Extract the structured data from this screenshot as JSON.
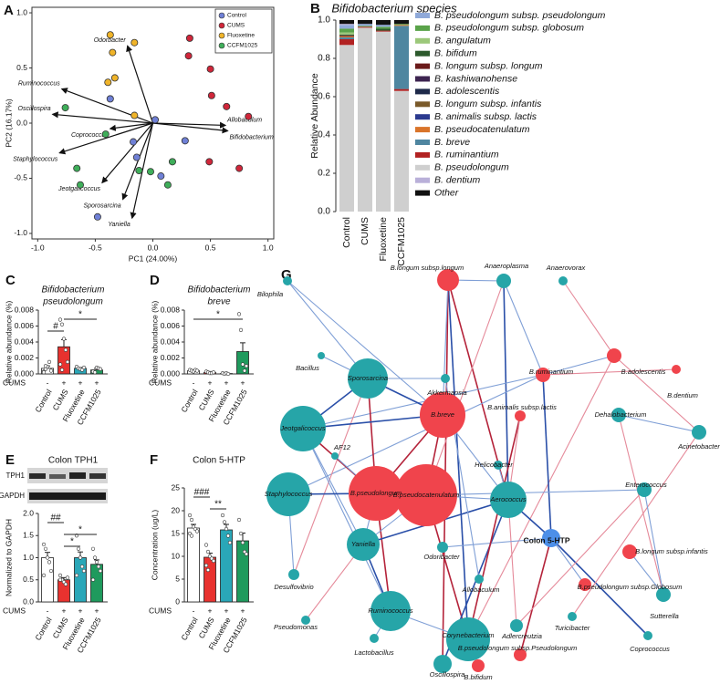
{
  "chart_data": [
    {
      "panel": "A",
      "type": "scatter",
      "xlabel": "PC1 (24.00%)",
      "ylabel": "PC2 (16.17%)",
      "xlim": [
        -1.05,
        1.05
      ],
      "ylim": [
        -1.05,
        1.05
      ],
      "xticks": [
        {
          "value": -1,
          "label": "-1.0"
        },
        -0.5,
        {
          "value": 0,
          "label": "0.0"
        },
        0.5,
        {
          "value": 1,
          "label": "1.0"
        }
      ],
      "yticks": [
        {
          "value": -1,
          "label": "-1.0"
        },
        -0.5,
        {
          "value": 0,
          "label": "0.0"
        },
        0.5,
        {
          "value": 1,
          "label": "1.0"
        }
      ],
      "legend": "upper right",
      "series": [
        {
          "name": "Control",
          "color": "#6f80d6",
          "x": [
            -0.17,
            -0.37,
            0.28,
            0.07,
            -0.48,
            -0.14,
            0.02
          ],
          "y": [
            -0.17,
            0.22,
            -0.16,
            -0.48,
            -0.85,
            -0.31,
            0.03
          ]
        },
        {
          "name": "CUMS",
          "color": "#d0263a",
          "x": [
            0.31,
            0.5,
            0.51,
            0.64,
            0.83,
            0.75,
            0.49,
            0.32
          ],
          "y": [
            0.61,
            0.49,
            0.25,
            0.15,
            0.06,
            -0.41,
            -0.35,
            0.77
          ]
        },
        {
          "name": "Fluoxetine",
          "color": "#f0b429",
          "x": [
            -0.37,
            -0.35,
            -0.33,
            -0.39,
            -0.16,
            -0.16
          ],
          "y": [
            0.8,
            0.64,
            0.41,
            0.37,
            0.07,
            0.73
          ]
        },
        {
          "name": "CCFM1025",
          "color": "#3fae5a",
          "x": [
            -0.76,
            -0.66,
            -0.63,
            -0.12,
            0.13,
            0.17,
            -0.02,
            -0.41
          ],
          "y": [
            0.14,
            -0.41,
            -0.56,
            -0.43,
            -0.56,
            -0.35,
            -0.44,
            -0.1
          ]
        }
      ],
      "loadings": [
        {
          "label": "Odorbacter",
          "x": -0.22,
          "y": 0.7
        },
        {
          "label": "Ruminococcus",
          "x": -0.79,
          "y": 0.31
        },
        {
          "label": "Oscillospira",
          "x": -0.87,
          "y": 0.08
        },
        {
          "label": "Coprococcus",
          "x": -0.37,
          "y": -0.05
        },
        {
          "label": "Staphylococcus",
          "x": -0.81,
          "y": -0.27
        },
        {
          "label": "Jeotgalicoccus",
          "x": -0.44,
          "y": -0.54
        },
        {
          "label": "Sporosarcina",
          "x": -0.26,
          "y": -0.69
        },
        {
          "label": "Yaniella",
          "x": -0.18,
          "y": -0.86
        },
        {
          "label": "Allobaculum",
          "x": 0.63,
          "y": -0.02
        },
        {
          "label": "Bifidobacterium",
          "x": 0.65,
          "y": -0.07
        }
      ]
    },
    {
      "panel": "B",
      "type": "stacked_bar",
      "title": "Bifidobacterium species",
      "ylabel": "Relative Abundance",
      "categories": [
        "Control",
        "CUMS",
        "Fluoxetine",
        "CCFM1025"
      ],
      "ylim": [
        0,
        1
      ],
      "yticks": [
        {
          "value": 0,
          "label": "0.0"
        },
        0.2,
        0.4,
        0.6,
        0.8,
        {
          "value": 1,
          "label": "1.0"
        }
      ],
      "series": [
        {
          "name": "B. pseudolongum subsp. pseudolongum",
          "color": "#8fa9d9",
          "values": [
            0.02,
            0.01,
            0.01,
            0
          ]
        },
        {
          "name": "B. pseudolongum subsp. globosum",
          "color": "#5aa34a",
          "values": [
            0.02,
            0.005,
            0.01,
            0.005
          ]
        },
        {
          "name": "B. angulatum",
          "color": "#9cc87a",
          "values": [
            0.01,
            0,
            0,
            0
          ]
        },
        {
          "name": "B. bifidum",
          "color": "#2d5a2d",
          "values": [
            0.005,
            0,
            0.01,
            0
          ]
        },
        {
          "name": "B. longum subsp. longum",
          "color": "#6b1a1a",
          "values": [
            0.005,
            0,
            0,
            0
          ]
        },
        {
          "name": "B. kashiwanohense",
          "color": "#3d2450",
          "values": [
            0,
            0,
            0,
            0
          ]
        },
        {
          "name": "B. adolescentis",
          "color": "#1e2a4a",
          "values": [
            0,
            0,
            0,
            0
          ]
        },
        {
          "name": "B. longum subsp. infantis",
          "color": "#7a5a2a",
          "values": [
            0,
            0,
            0,
            0
          ]
        },
        {
          "name": "B. animalis subsp. lactis",
          "color": "#2b3a8f",
          "values": [
            0,
            0,
            0,
            0
          ]
        },
        {
          "name": "B. pseudocatenulatum",
          "color": "#d9742a",
          "values": [
            0.005,
            0,
            0,
            0.005
          ]
        },
        {
          "name": "B. breve",
          "color": "#4f86a0",
          "values": [
            0.01,
            0,
            0,
            0.33
          ]
        },
        {
          "name": "B. ruminantium",
          "color": "#b22222",
          "values": [
            0.03,
            0.005,
            0.005,
            0.01
          ]
        },
        {
          "name": "B. pseudolongum",
          "color": "#cfcfcf",
          "values": [
            0.87,
            0.96,
            0.94,
            0.63
          ]
        },
        {
          "name": "B. dentium",
          "color": "#b9b0d9",
          "values": [
            0.005,
            0,
            0,
            0
          ]
        },
        {
          "name": "Other",
          "color": "#111111",
          "values": [
            0.02,
            0.02,
            0.025,
            0.02
          ]
        }
      ]
    },
    {
      "panel": "C",
      "type": "bar_dot",
      "title_lines": [
        "Bifidobacterium",
        "pseudolongum"
      ],
      "ylabel": "Relative abundance (%)",
      "categories": [
        "Control",
        "CUMS",
        "Fluoxetine",
        "CCFM1025"
      ],
      "colors": [
        "#ffffff",
        "#e8322f",
        "#2aa7b8",
        "#1f9a5d"
      ],
      "values": [
        0.0007,
        0.0034,
        0.0007,
        0.0005
      ],
      "errors": [
        0.0003,
        0.0009,
        0.0001,
        0.0002
      ],
      "points": [
        [
          0.0003,
          0.0006,
          0.0009,
          0.0015,
          0.0004,
          0.0002,
          0.001
        ],
        [
          0.0068,
          0.0062,
          0.0044,
          0.003,
          0.0015,
          0.0012,
          0.0005
        ],
        [
          0.0009,
          0.0007,
          0.0006,
          0.0005,
          0.0008
        ],
        [
          0.0003,
          0.0002,
          0.0008,
          0.0007,
          0.0006
        ]
      ],
      "ylim": [
        0,
        0.008
      ],
      "yticks": [
        {
          "value": 0,
          "label": "0.000"
        },
        0.002,
        0.004,
        0.006,
        0.008
      ],
      "treatment": {
        "label": "CUMS",
        "signs": [
          "-",
          "+",
          "+",
          "+"
        ]
      },
      "annotations": [
        {
          "text": "*",
          "from": 1,
          "to": 3
        },
        {
          "text": "#",
          "from": 0,
          "to": 1
        }
      ]
    },
    {
      "panel": "D",
      "type": "bar_dot",
      "title_lines": [
        "Bifidobacterium",
        "breve"
      ],
      "ylabel": "Relative abundance (%)",
      "categories": [
        "Control",
        "CUMS",
        "Fluoxetine",
        "CCFM1025"
      ],
      "colors": [
        "#ffffff",
        "#e8322f",
        "#2aa7b8",
        "#1f9a5d"
      ],
      "values": [
        0.0004,
        0.0002,
        5e-05,
        0.0028
      ],
      "errors": [
        0.0001,
        0.0001,
        2e-05,
        0.0011
      ],
      "points": [
        [
          0.0005,
          0.0004,
          0.0003,
          0.0005,
          0.0004
        ],
        [
          0.0003,
          0.0002,
          0.0001,
          0.0001,
          0.0002
        ],
        [
          0.0001,
          0,
          0.0001,
          0
        ],
        [
          0.0075,
          0.0055,
          0.0012,
          0.0004,
          0.001
        ]
      ],
      "ylim": [
        0,
        0.008
      ],
      "yticks": [
        {
          "value": 0,
          "label": "0.000"
        },
        0.002,
        0.004,
        0.006,
        0.008
      ],
      "treatment": {
        "label": "CUMS",
        "signs": [
          "-",
          "+",
          "+",
          "+"
        ]
      },
      "annotations": [
        {
          "text": "*",
          "from": 0,
          "to": 3
        }
      ]
    },
    {
      "panel": "E",
      "type": "bar_dot",
      "title_lines": [
        "Colon TPH1"
      ],
      "blot_labels": [
        "TPH1",
        "GAPDH"
      ],
      "ylabel": "Normalized to GAPDH",
      "categories": [
        "Control",
        "CUMS",
        "Fluoxetine",
        "CCFM1025"
      ],
      "colors": [
        "#ffffff",
        "#e8322f",
        "#2aa7b8",
        "#1f9a5d"
      ],
      "values": [
        1.0,
        0.5,
        1.0,
        0.85
      ],
      "errors": [
        0.12,
        0.05,
        0.13,
        0.1
      ],
      "points": [
        [
          1.3,
          1.2,
          1.0,
          0.9,
          0.7,
          0.6
        ],
        [
          0.6,
          0.5,
          0.45,
          0.4,
          0.55,
          0.5
        ],
        [
          1.5,
          1.2,
          1.0,
          0.8,
          0.7,
          0.6
        ],
        [
          1.2,
          1.0,
          0.9,
          0.8,
          0.7,
          0.5
        ]
      ],
      "ylim": [
        0,
        2
      ],
      "yticks": [
        {
          "value": 0,
          "label": "0.0"
        },
        0.5,
        {
          "value": 1,
          "label": "1.0"
        },
        1.5,
        {
          "value": 2,
          "label": "2.0"
        }
      ],
      "treatment": {
        "label": "CUMS",
        "signs": [
          "-",
          "+",
          "+",
          "+"
        ]
      },
      "annotations": [
        {
          "text": "##",
          "from": 0,
          "to": 1
        },
        {
          "text": "*",
          "from": 1,
          "to": 3
        },
        {
          "text": "*",
          "from": 1,
          "to": 2
        }
      ]
    },
    {
      "panel": "F",
      "type": "bar_dot",
      "title_lines": [
        "Colon 5-HTP"
      ],
      "ylabel": "Concentration (ug/L)",
      "categories": [
        "Control",
        "CUMS",
        "Fluoxetine",
        "CCFM1025"
      ],
      "colors": [
        "#ffffff",
        "#e8322f",
        "#2aa7b8",
        "#1f9a5d"
      ],
      "values": [
        16.2,
        9.8,
        15.8,
        13.4
      ],
      "errors": [
        0.8,
        0.9,
        1.2,
        1.7
      ],
      "points": [
        [
          19,
          18,
          16.5,
          16,
          15.5,
          15,
          14.5
        ],
        [
          12.5,
          11,
          10,
          9.5,
          9,
          8,
          7
        ],
        [
          19,
          17.5,
          16,
          14.5,
          13
        ],
        [
          18,
          15,
          13,
          11,
          10.5
        ]
      ],
      "ylim": [
        0,
        25
      ],
      "yticks": [
        0,
        5,
        10,
        15,
        20,
        25
      ],
      "treatment": {
        "label": "CUMS",
        "signs": [
          "-",
          "+",
          "+",
          "+"
        ]
      },
      "annotations": [
        {
          "text": "###",
          "from": 0,
          "to": 1
        },
        {
          "text": "**",
          "from": 1,
          "to": 2
        }
      ]
    }
  ],
  "network": {
    "panel": "G",
    "nodes": [
      {
        "label": "B.longum subsp.longum",
        "color": "#f0444c"
      },
      {
        "label": "Anaeroplasma",
        "color": "#26a5a8"
      },
      {
        "label": "Anaerovorax",
        "color": "#26a5a8"
      },
      {
        "label": "Bilophila",
        "color": "#26a5a8"
      },
      {
        "label": "B.adolescentis",
        "color": "#f0444c"
      },
      {
        "label": "Bacillus",
        "color": "#26a5a8"
      },
      {
        "label": "Sporosarcina",
        "color": "#26a5a8"
      },
      {
        "label": "Akkermansia",
        "color": "#26a5a8"
      },
      {
        "label": "B.ruminantium",
        "color": "#f0444c"
      },
      {
        "label": "B.dentium",
        "color": "#f0444c"
      },
      {
        "label": "AF12",
        "color": "#26a5a8"
      },
      {
        "label": "Jeotgalicoccus",
        "color": "#26a5a8"
      },
      {
        "label": "B.breve",
        "color": "#f0444c"
      },
      {
        "label": "B.animalis subsp.lactis",
        "color": "#f0444c"
      },
      {
        "label": "Dehalobacterium",
        "color": "#26a5a8"
      },
      {
        "label": "Helicobacter",
        "color": "#26a5a8"
      },
      {
        "label": "Acinetobacter",
        "color": "#26a5a8"
      },
      {
        "label": "B.pseudolongum",
        "color": "#f0444c"
      },
      {
        "label": "B.pseudocatenulatum",
        "color": "#f0444c"
      },
      {
        "label": "Staphylococcus",
        "color": "#26a5a8"
      },
      {
        "label": "Aerococcus",
        "color": "#26a5a8"
      },
      {
        "label": "Enterococcus",
        "color": "#26a5a8"
      },
      {
        "label": "Colon 5-HTP",
        "color": "#4d8fe8"
      },
      {
        "label": "B.longum subsp.infantis",
        "color": "#f0444c"
      },
      {
        "label": "Yaniella",
        "color": "#26a5a8"
      },
      {
        "label": "Odoribacter",
        "color": "#26a5a8"
      },
      {
        "label": "B.pseudolongum subsp.Globosum",
        "color": "#f0444c"
      },
      {
        "label": "Desulfovibrio",
        "color": "#26a5a8"
      },
      {
        "label": "Allobaculum",
        "color": "#26a5a8"
      },
      {
        "label": "Sutterella",
        "color": "#26a5a8"
      },
      {
        "label": "Ruminococcus",
        "color": "#26a5a8"
      },
      {
        "label": "Turicibacter",
        "color": "#26a5a8"
      },
      {
        "label": "Corynebacterium",
        "color": "#26a5a8"
      },
      {
        "label": "Pseudomonas",
        "color": "#26a5a8"
      },
      {
        "label": "Adlercreutzia",
        "color": "#26a5a8"
      },
      {
        "label": "Coprococcus",
        "color": "#26a5a8"
      },
      {
        "label": "Lactobacillus",
        "color": "#26a5a8"
      },
      {
        "label": "Oscillospira",
        "color": "#26a5a8"
      },
      {
        "label": "B.pseudolongum subsp.Pseudolongum",
        "color": "#f0444c"
      },
      {
        "label": "B.bifidum",
        "color": "#f0444c"
      }
    ]
  }
}
